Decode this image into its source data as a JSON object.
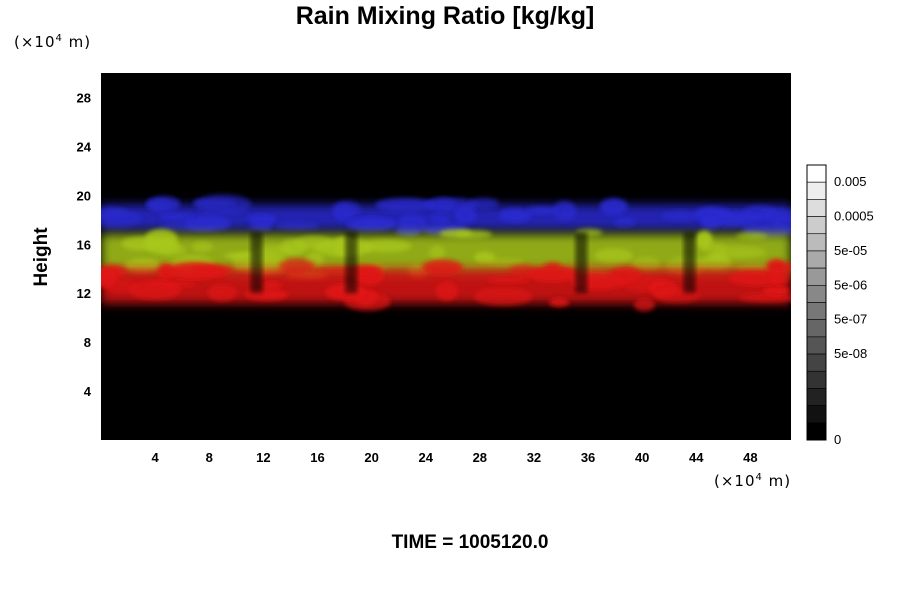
{
  "chart_data": {
    "type": "heatmap",
    "title": "Rain Mixing Ratio [kg/kg]",
    "ylabel": "Height",
    "x_unit_prefix": "(×10",
    "x_unit_exp": "4",
    "x_unit_suffix": " m)",
    "y_unit_prefix": "(×10",
    "y_unit_exp": "4",
    "y_unit_suffix": " m)",
    "xlim": [
      0,
      51
    ],
    "ylim": [
      0,
      30
    ],
    "x_ticks": [
      "4",
      "8",
      "12",
      "16",
      "20",
      "24",
      "28",
      "32",
      "36",
      "40",
      "44",
      "48"
    ],
    "y_ticks": [
      "4",
      "8",
      "12",
      "16",
      "20",
      "24",
      "28"
    ],
    "colorbar": {
      "labels": [
        "0.005",
        "0.0005",
        "5e-05",
        "5e-06",
        "5e-07",
        "5e-08",
        "0"
      ],
      "levels": 16
    },
    "bands": [
      {
        "name": "blue",
        "color": "#2a2ad0",
        "y_bottom": 17.0,
        "y_top": 19.4
      },
      {
        "name": "yellow-green",
        "color": "#a8c81c",
        "y_bottom": 13.3,
        "y_top": 17.0
      },
      {
        "name": "red",
        "color": "#e01818",
        "y_bottom": 11.0,
        "y_top": 14.2
      }
    ],
    "background_color": "#000000",
    "time_label": "TIME = 1005120.0"
  }
}
